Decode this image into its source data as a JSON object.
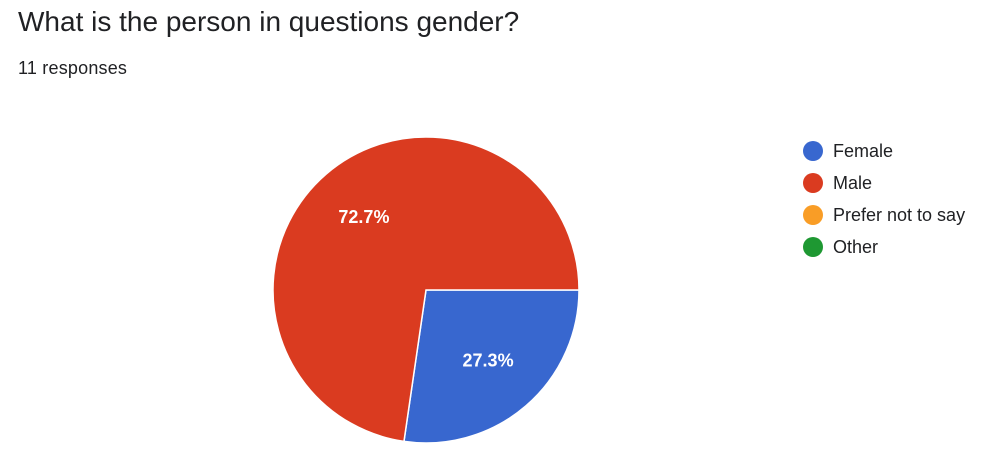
{
  "header": {
    "title": "What is the person in questions gender?",
    "responses": "11 responses"
  },
  "chart_data": {
    "type": "pie",
    "title": "What is the person in questions gender?",
    "subtitle": "11 responses",
    "total_responses": 11,
    "categories": [
      "Female",
      "Male",
      "Prefer not to say",
      "Other"
    ],
    "values": [
      27.3,
      72.7,
      0,
      0
    ],
    "counts": [
      3,
      8,
      0,
      0
    ],
    "data_labels": [
      "27.3%",
      "72.7%",
      "",
      ""
    ],
    "colors": [
      "#3867CF",
      "#DA3B20",
      "#F99D26",
      "#1E9832"
    ],
    "legend_placement": "right"
  }
}
